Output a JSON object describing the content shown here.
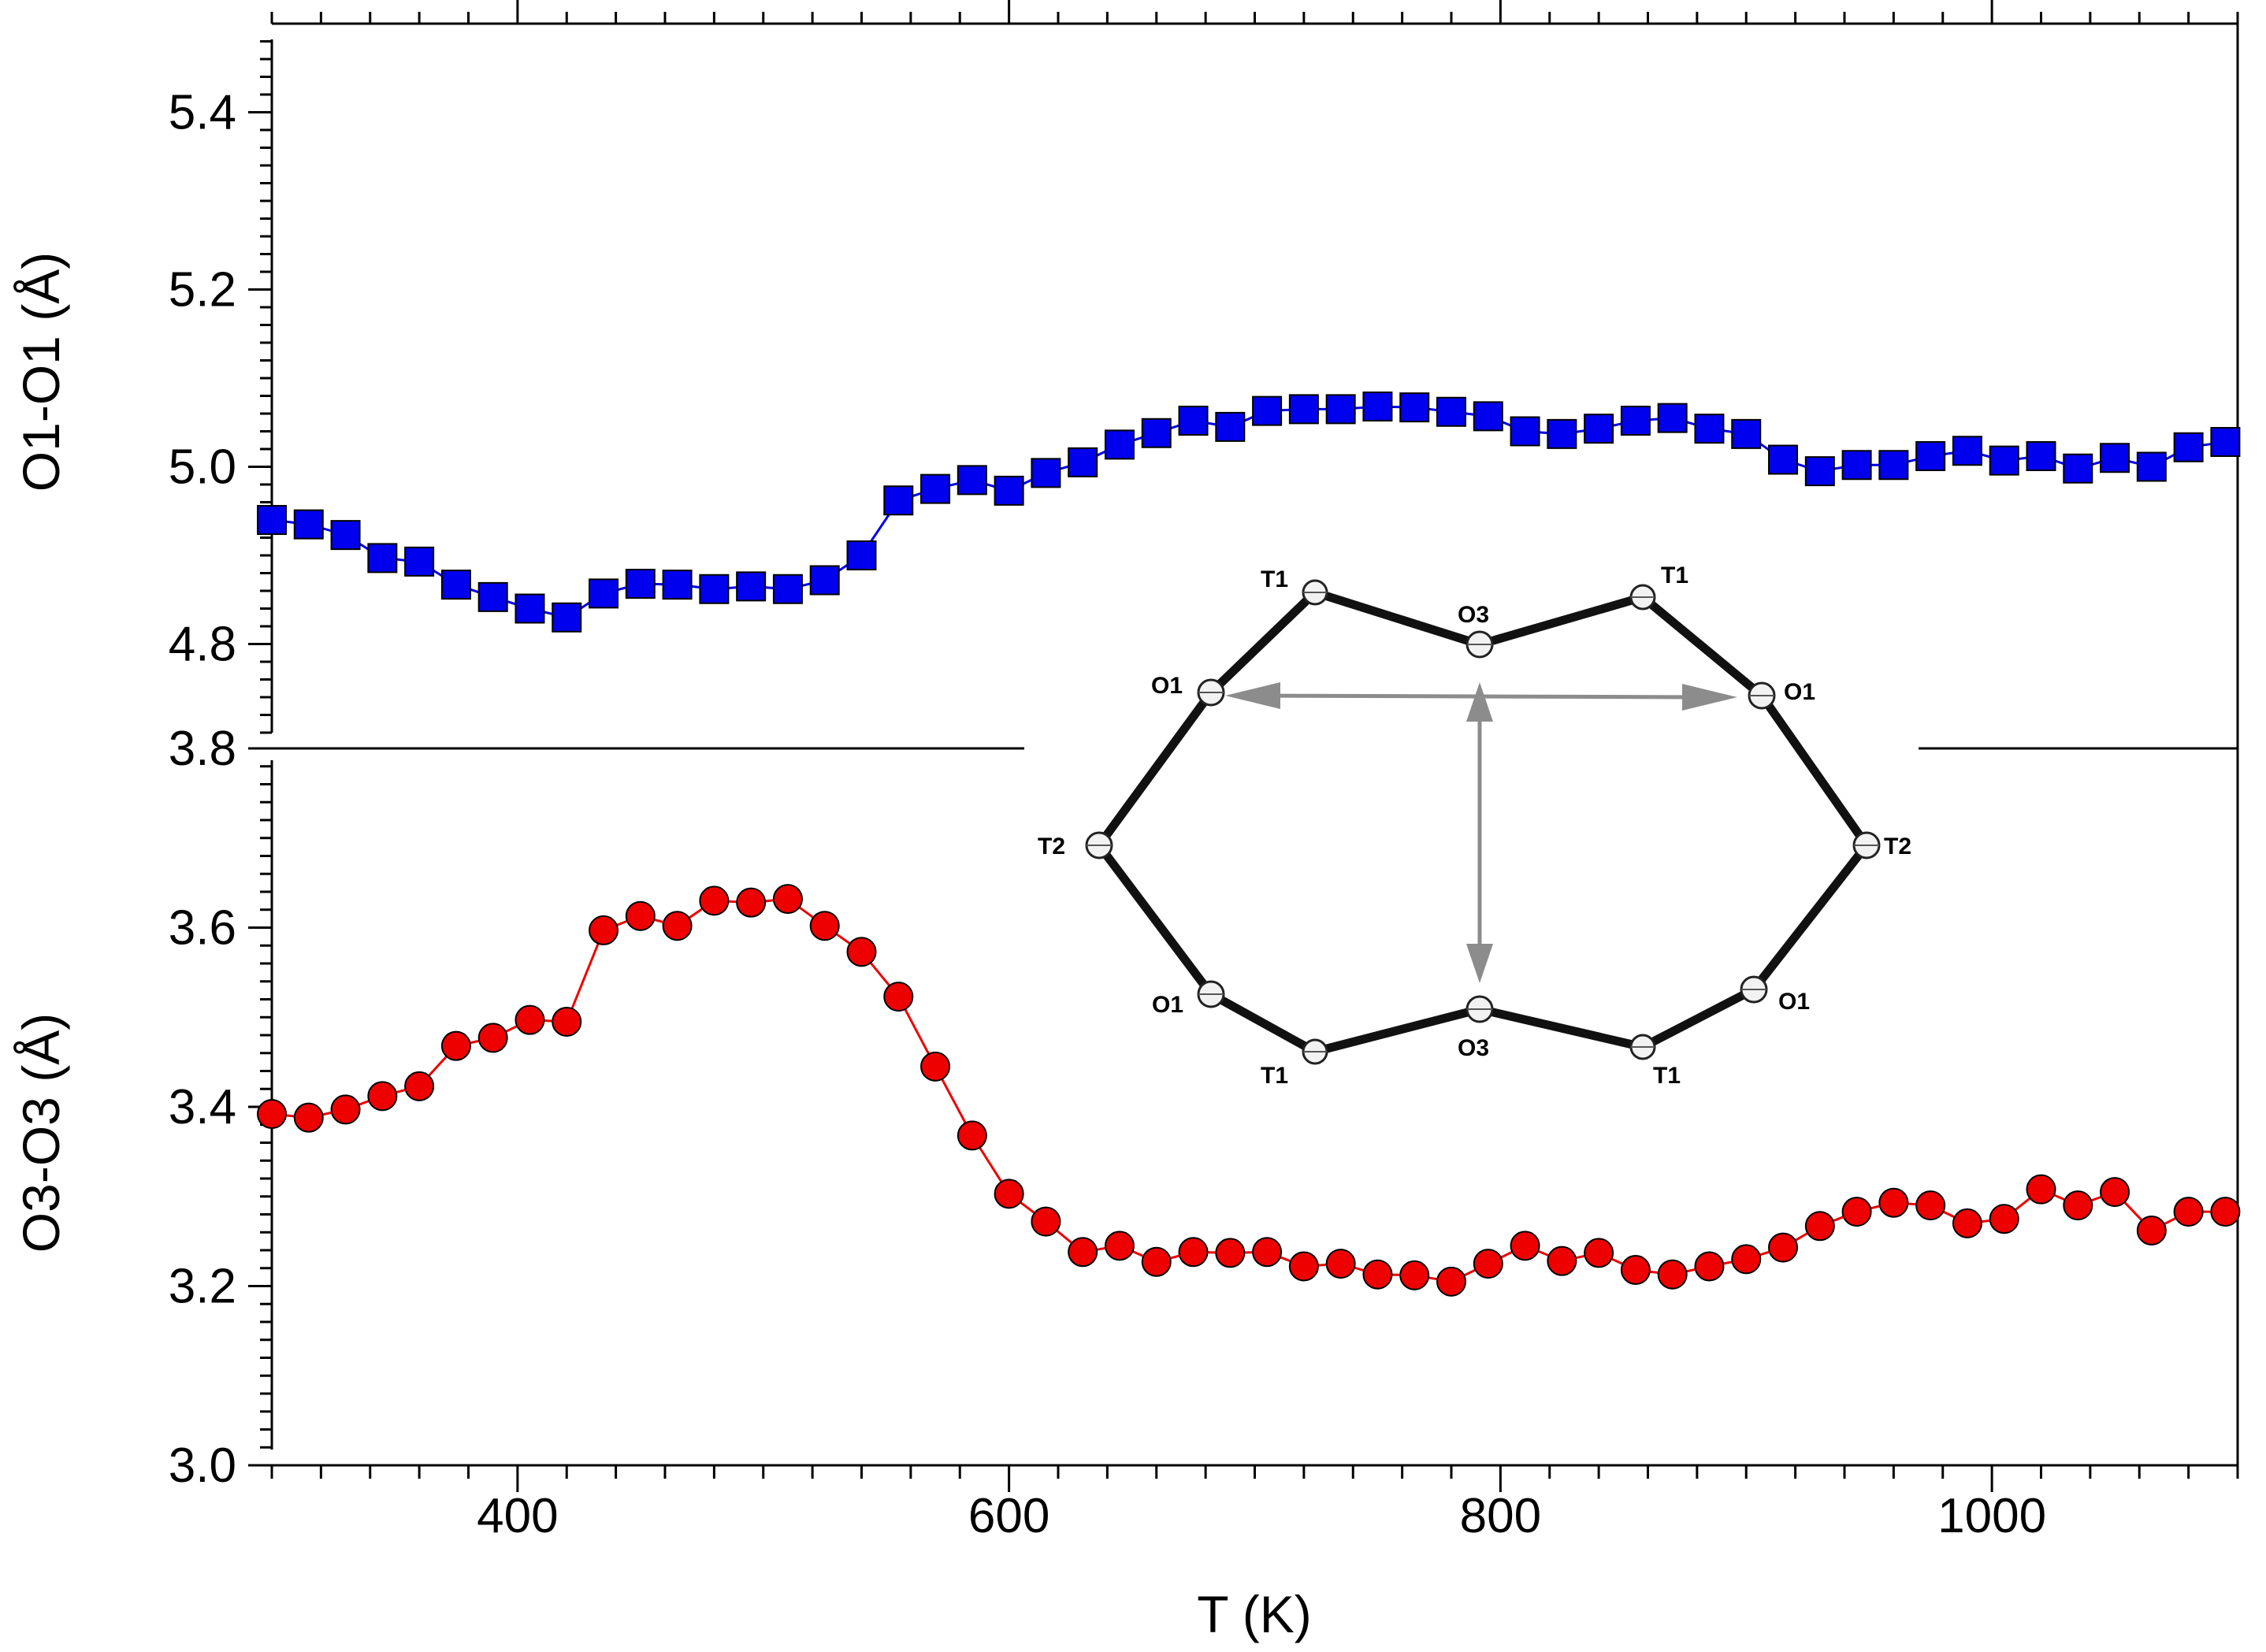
{
  "colors": {
    "top_series": "#0000ee",
    "bottom_series": "#ee0000",
    "inset_bond": "#111111",
    "inset_arrow": "#8c8c8c"
  },
  "chart_data": {
    "type": "scatter",
    "layout": "two vertically stacked panels sharing the x axis",
    "xlabel": "T (K)",
    "xlim": [
      300,
      1100
    ],
    "xticks": [
      400,
      600,
      800,
      1000
    ],
    "panels": [
      {
        "ylabel": "O1-O1 (Å)",
        "ylim": [
          4.7,
          5.5
        ],
        "yticks": [
          "4.8",
          "5.0",
          "5.2",
          "5.4"
        ],
        "series": [
          {
            "name": "O1-O1",
            "marker": "square",
            "color": "#0000ee",
            "x": [
              300,
              315,
              330,
              345,
              360,
              375,
              390,
              405,
              420,
              435,
              450,
              465,
              480,
              495,
              510,
              525,
              540,
              555,
              570,
              585,
              600,
              615,
              630,
              645,
              660,
              675,
              690,
              705,
              720,
              735,
              750,
              765,
              780,
              795,
              810,
              825,
              840,
              855,
              870,
              885,
              900,
              915,
              930,
              945,
              960,
              975,
              990,
              1005,
              1020,
              1035,
              1050,
              1065,
              1080,
              1095
            ],
            "y": [
              4.94,
              4.935,
              4.923,
              4.897,
              4.893,
              4.867,
              4.853,
              4.84,
              4.83,
              4.857,
              4.868,
              4.867,
              4.862,
              4.865,
              4.862,
              4.872,
              4.9,
              4.962,
              4.975,
              4.985,
              4.973,
              4.993,
              5.005,
              5.025,
              5.038,
              5.052,
              5.045,
              5.063,
              5.065,
              5.065,
              5.068,
              5.067,
              5.062,
              5.057,
              5.04,
              5.037,
              5.043,
              5.052,
              5.055,
              5.043,
              5.037,
              5.008,
              4.995,
              5.002,
              5.002,
              5.012,
              5.018,
              5.007,
              5.012,
              4.998,
              5.01,
              5.0,
              5.022,
              5.028
            ]
          }
        ]
      },
      {
        "ylabel": "O3-O3 (Å)",
        "ylim": [
          3.0,
          3.8
        ],
        "yticks": [
          "3.0",
          "3.2",
          "3.4",
          "3.6",
          "3.8"
        ],
        "series": [
          {
            "name": "O3-O3",
            "marker": "circle",
            "color": "#ee0000",
            "x": [
              300,
              315,
              330,
              345,
              360,
              375,
              390,
              405,
              420,
              435,
              450,
              465,
              480,
              495,
              510,
              525,
              540,
              555,
              570,
              585,
              600,
              615,
              630,
              645,
              660,
              675,
              690,
              705,
              720,
              735,
              750,
              765,
              780,
              795,
              810,
              825,
              840,
              855,
              870,
              885,
              900,
              915,
              930,
              945,
              960,
              975,
              990,
              1005,
              1020,
              1035,
              1050,
              1065,
              1080,
              1095
            ],
            "y": [
              3.392,
              3.388,
              3.397,
              3.412,
              3.423,
              3.468,
              3.477,
              3.497,
              3.495,
              3.597,
              3.613,
              3.602,
              3.63,
              3.628,
              3.632,
              3.602,
              3.573,
              3.523,
              3.445,
              3.368,
              3.303,
              3.272,
              3.238,
              3.245,
              3.227,
              3.238,
              3.237,
              3.238,
              3.222,
              3.225,
              3.213,
              3.212,
              3.205,
              3.225,
              3.245,
              3.228,
              3.237,
              3.218,
              3.213,
              3.222,
              3.23,
              3.243,
              3.267,
              3.283,
              3.293,
              3.29,
              3.27,
              3.275,
              3.308,
              3.29,
              3.305,
              3.262,
              3.283,
              3.283
            ]
          }
        ]
      }
    ],
    "inset": {
      "description": "ring of T and O atoms with grey double-headed arrows marking O1-O1 and O3-O3 distances",
      "labels": [
        "T1",
        "O3",
        "T1",
        "O1",
        "O1",
        "T2",
        "T2",
        "O1",
        "O1",
        "T1",
        "O3",
        "T1"
      ]
    }
  }
}
